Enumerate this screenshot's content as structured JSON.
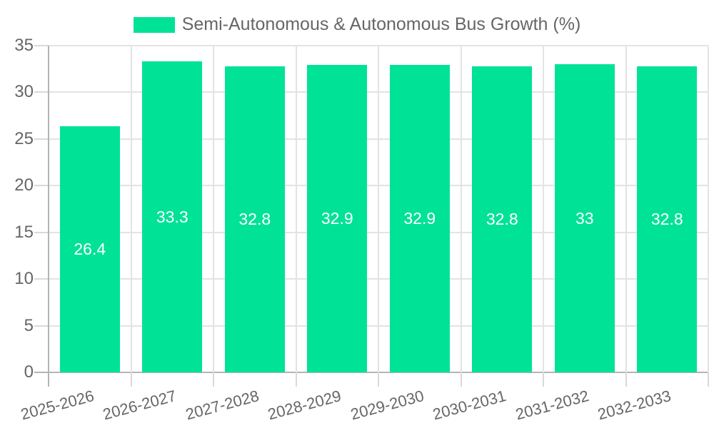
{
  "chart_data": {
    "type": "bar",
    "title": "Semi-Autonomous & Autonomous Bus Growth (%)",
    "categories": [
      "2025-2026",
      "2026-2027",
      "2027-2028",
      "2028-2029",
      "2029-2030",
      "2030-2031",
      "2031-2032",
      "2032-2033"
    ],
    "values": [
      26.4,
      33.3,
      32.8,
      32.9,
      32.9,
      32.8,
      33,
      32.8
    ],
    "value_labels": [
      "26.4",
      "33.3",
      "32.8",
      "32.9",
      "32.9",
      "32.8",
      "33",
      "32.8"
    ],
    "xlabel": "",
    "ylabel": "",
    "ylim": [
      0,
      35
    ],
    "ytick_step": 5,
    "ytick_labels": [
      "0",
      "5",
      "10",
      "15",
      "20",
      "25",
      "30",
      "35"
    ],
    "legend_position": "top",
    "grid": true,
    "x_label_rotation_deg": -15,
    "colors": {
      "bar": "#00E296",
      "axis_text": "#666666",
      "value_label_text": "#ffffff",
      "grid_line": "#e3e3e3",
      "tick_line": "#d9d9d9",
      "axis_line": "#b4b4b4",
      "background": "#ffffff"
    }
  }
}
